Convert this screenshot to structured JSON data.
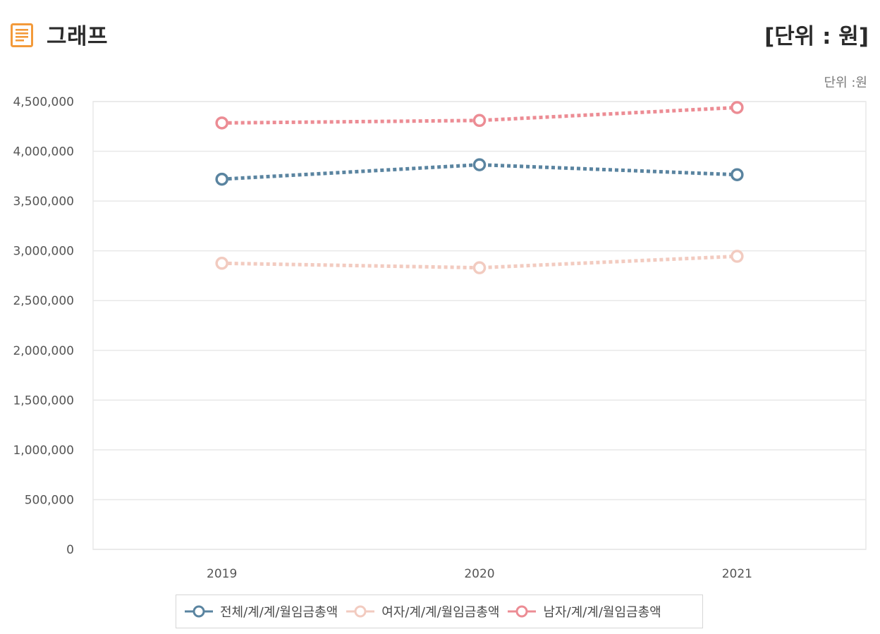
{
  "header": {
    "title": "그래프",
    "unit_label": "[단위 : 원]"
  },
  "chart_unit": "단위 :원",
  "icons": {
    "title_icon": "document-list-icon"
  },
  "colors": {
    "icon_orange": "#f39a3a",
    "grid": "#e8e8e8",
    "axis_text": "#555555"
  },
  "chart_data": {
    "type": "line",
    "categories": [
      "2019",
      "2020",
      "2021"
    ],
    "y_ticks": [
      0,
      500000,
      1000000,
      1500000,
      2000000,
      2500000,
      3000000,
      3500000,
      4000000,
      4500000
    ],
    "y_tick_labels": [
      "0",
      "500,000",
      "1,000,000",
      "1,500,000",
      "2,000,000",
      "2,500,000",
      "3,000,000",
      "3,500,000",
      "4,000,000",
      "4,500,000"
    ],
    "ylim": [
      0,
      4500000
    ],
    "grid": true,
    "legend_position": "bottom",
    "line_style": "dotted",
    "series": [
      {
        "name": "전체/계/계/월임금총액",
        "color": "#5a84a0",
        "values": [
          3720000,
          3865000,
          3765000
        ]
      },
      {
        "name": "여자/계/계/월임금총액",
        "color": "#f2cbc0",
        "values": [
          2875000,
          2830000,
          2945000
        ]
      },
      {
        "name": "남자/계/계/월임금총액",
        "color": "#ec8c94",
        "values": [
          4285000,
          4310000,
          4440000
        ]
      }
    ]
  }
}
